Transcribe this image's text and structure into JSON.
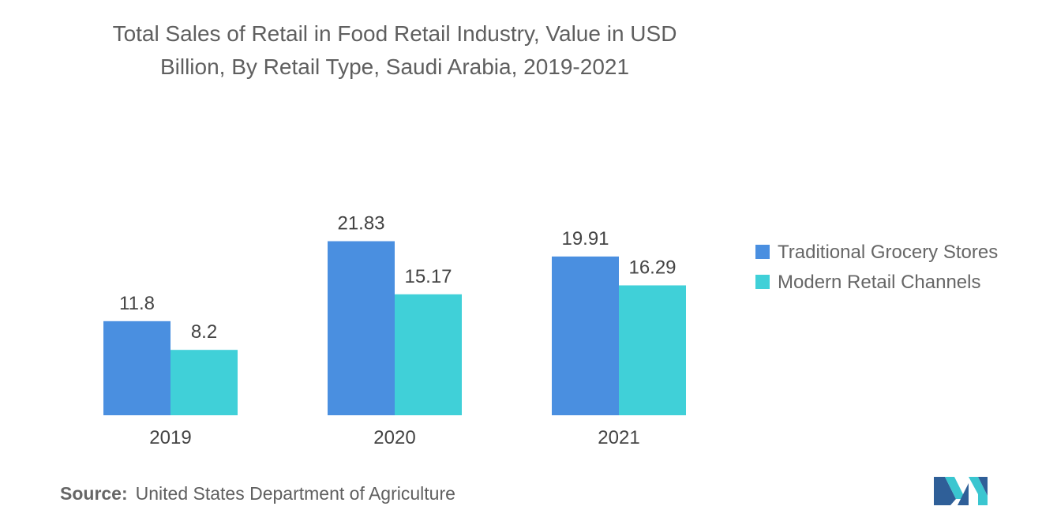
{
  "chart_data": {
    "type": "bar",
    "title_lines": [
      "Total Sales of Retail in Food Retail Industry, Value in USD",
      "Billion, By Retail Type, Saudi Arabia, 2019-2021"
    ],
    "categories": [
      "2019",
      "2020",
      "2021"
    ],
    "series": [
      {
        "name": "Traditional Grocery Stores",
        "color": "#4a8fe0",
        "values": [
          11.8,
          21.83,
          19.91
        ],
        "labels": [
          "11.8",
          "21.83",
          "19.91"
        ]
      },
      {
        "name": "Modern Retail Channels",
        "color": "#40d0d8",
        "values": [
          8.2,
          15.17,
          16.29
        ],
        "labels": [
          "8.2",
          "15.17",
          "16.29"
        ]
      }
    ],
    "ylim": [
      0,
      24
    ],
    "grid": false,
    "y_axis_visible": false,
    "legend_position": "right"
  },
  "source": {
    "label": "Source:",
    "text": "United States Department of Agriculture"
  },
  "logo": {
    "icon": "mordor-intelligence-logo-icon",
    "colors": [
      "#2f5f98",
      "#3ac6d0"
    ]
  }
}
